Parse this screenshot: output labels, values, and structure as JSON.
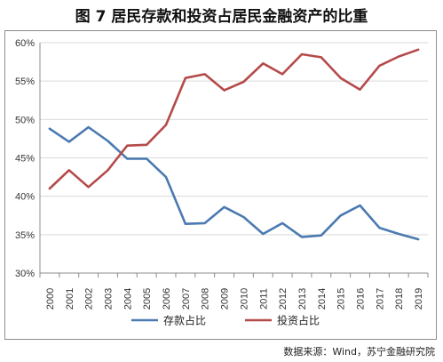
{
  "title": "图 7  居民存款和投资占居民金融资产的比重",
  "source": "数据来源：Wind，苏宁金融研究院",
  "colors": {
    "series_deposit": "#4a7ab1",
    "series_invest": "#b54a4a",
    "grid": "#d9d9d9",
    "axis": "#8c8c8c"
  },
  "chart_data": {
    "type": "line",
    "title": "图 7  居民存款和投资占居民金融资产的比重",
    "xlabel": "",
    "ylabel": "",
    "ylim": [
      30,
      60
    ],
    "yticks": [
      30,
      35,
      40,
      45,
      50,
      55,
      60
    ],
    "ytick_labels": [
      "30%",
      "35%",
      "40%",
      "45%",
      "50%",
      "55%",
      "60%"
    ],
    "grid": true,
    "legend": "bottom",
    "categories": [
      "2000",
      "2001",
      "2002",
      "2003",
      "2004",
      "2005",
      "2006",
      "2007",
      "2008",
      "2009",
      "2010",
      "2011",
      "2012",
      "2013",
      "2014",
      "2015",
      "2016",
      "2017",
      "2018",
      "2019"
    ],
    "series": [
      {
        "name": "存款占比",
        "color": "#4a7ab1",
        "values": [
          48.8,
          47.1,
          49.0,
          47.2,
          44.9,
          44.9,
          42.5,
          36.4,
          36.5,
          38.6,
          37.3,
          35.1,
          36.5,
          34.7,
          34.9,
          37.5,
          38.8,
          35.9,
          35.1,
          34.4
        ]
      },
      {
        "name": "投资占比",
        "color": "#b54a4a",
        "values": [
          41.0,
          43.4,
          41.2,
          43.4,
          46.6,
          46.7,
          49.3,
          55.4,
          55.9,
          53.8,
          54.9,
          57.3,
          55.9,
          58.5,
          58.1,
          55.4,
          53.9,
          57.0,
          58.2,
          59.1
        ]
      }
    ]
  }
}
